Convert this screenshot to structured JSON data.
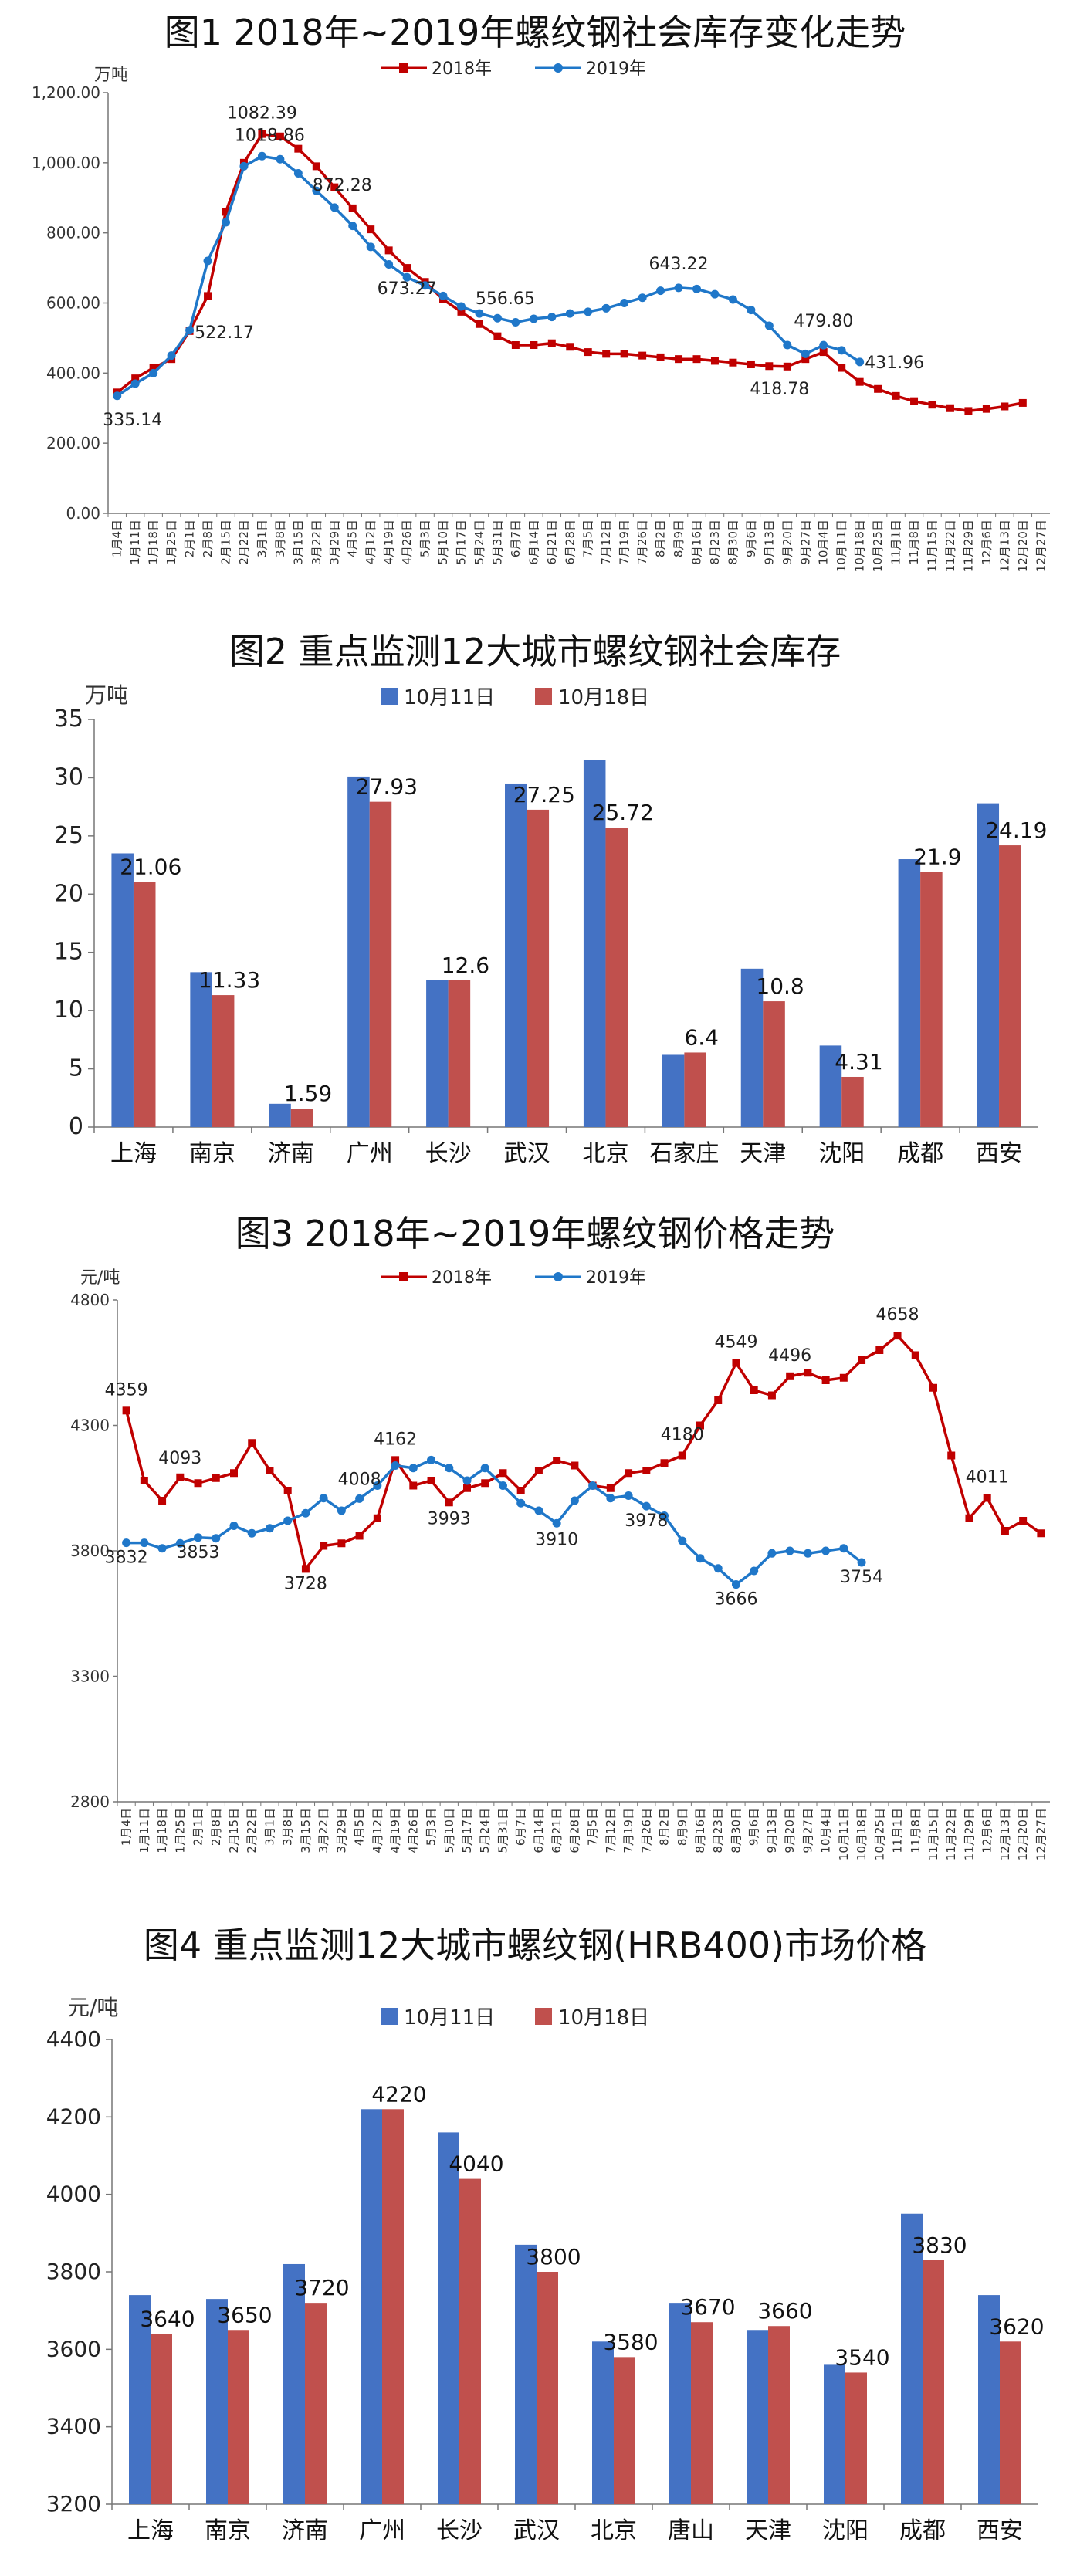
{
  "chart_data": [
    {
      "type": "line",
      "title": "图1 2018年~2019年螺纹钢社会库存变化走势",
      "ylabel": "万吨",
      "ylim": [
        0,
        1200
      ],
      "yticks": [
        "0.00",
        "200.00",
        "400.00",
        "600.00",
        "800.00",
        "1,000.00",
        "1,200.00"
      ],
      "legend_position": "top-center",
      "grid": false,
      "x": [
        "1月4日",
        "1月11日",
        "1月18日",
        "1月25日",
        "2月1日",
        "2月8日",
        "2月15日",
        "2月22日",
        "3月1日",
        "3月8日",
        "3月15日",
        "3月22日",
        "3月29日",
        "4月5日",
        "4月12日",
        "4月19日",
        "4月26日",
        "5月3日",
        "5月10日",
        "5月17日",
        "5月24日",
        "5月31日",
        "6月7日",
        "6月14日",
        "6月21日",
        "6月28日",
        "7月5日",
        "7月12日",
        "7月19日",
        "7月26日",
        "8月2日",
        "8月9日",
        "8月16日",
        "8月23日",
        "8月30日",
        "9月6日",
        "9月13日",
        "9月20日",
        "9月27日",
        "10月4日",
        "10月11日",
        "10月18日",
        "10月25日",
        "11月1日",
        "11月8日",
        "11月15日",
        "11月22日",
        "11月29日",
        "12月6日",
        "12月13日",
        "12月20日",
        "12月27日"
      ],
      "series": [
        {
          "name": "2018年",
          "color": "#c00000",
          "values": [
            345,
            385,
            415,
            440,
            520,
            620,
            860,
            1000,
            1082,
            1075,
            1040,
            990,
            930,
            870,
            810,
            750,
            700,
            660,
            610,
            575,
            540,
            505,
            480,
            480,
            485,
            475,
            460,
            455,
            455,
            450,
            445,
            440,
            440,
            435,
            430,
            425,
            420,
            418.78,
            440,
            460,
            415,
            375,
            355,
            335,
            320,
            310,
            300,
            292,
            298,
            305,
            315,
            null
          ]
        },
        {
          "name": "2019年",
          "color": "#1f77c9",
          "values": [
            335.14,
            370,
            400,
            450,
            522.17,
            720,
            830,
            990,
            1018.86,
            1010,
            970,
            920,
            872.28,
            820,
            760,
            710,
            673.27,
            650,
            620,
            590,
            570,
            556.65,
            545,
            555,
            560,
            570,
            575,
            585,
            600,
            615,
            635,
            643.22,
            640,
            625,
            610,
            580,
            535,
            480,
            455,
            479.8,
            465,
            431.96,
            null,
            null,
            null,
            null,
            null,
            null,
            null,
            null,
            null,
            null
          ]
        }
      ],
      "labels": [
        {
          "series": 0,
          "index": 8,
          "text": "1082.39"
        },
        {
          "series": 1,
          "index": 8,
          "text": "1018.86"
        },
        {
          "series": 1,
          "index": 12,
          "text": "872.28"
        },
        {
          "series": 1,
          "index": 16,
          "text": "673.27"
        },
        {
          "series": 1,
          "index": 4,
          "text": "522.17"
        },
        {
          "series": 1,
          "index": 0,
          "text": "335.14"
        },
        {
          "series": 1,
          "index": 21,
          "text": "556.65"
        },
        {
          "series": 1,
          "index": 31,
          "text": "643.22"
        },
        {
          "series": 0,
          "index": 37,
          "text": "418.78"
        },
        {
          "series": 1,
          "index": 39,
          "text": "479.80"
        },
        {
          "series": 1,
          "index": 41,
          "text": "431.96"
        }
      ]
    },
    {
      "type": "bar",
      "title": "图2 重点监测12大城市螺纹钢社会库存",
      "ylabel": "万吨",
      "ylim": [
        0,
        35
      ],
      "yticks": [
        "0",
        "5",
        "10",
        "15",
        "20",
        "25",
        "30",
        "35"
      ],
      "legend_position": "top-center",
      "categories": [
        "上海",
        "南京",
        "济南",
        "广州",
        "长沙",
        "武汉",
        "北京",
        "石家庄",
        "天津",
        "沈阳",
        "成都",
        "西安"
      ],
      "series": [
        {
          "name": "10月11日",
          "color": "#4472c4",
          "values": [
            23.5,
            13.3,
            2.0,
            30.1,
            12.6,
            29.5,
            31.5,
            6.2,
            13.6,
            7.0,
            23.0,
            27.8
          ]
        },
        {
          "name": "10月18日",
          "color": "#c0504d",
          "values": [
            21.06,
            11.33,
            1.59,
            27.93,
            12.6,
            27.25,
            25.72,
            6.4,
            10.8,
            4.31,
            21.9,
            24.19
          ]
        }
      ],
      "label_texts": [
        "21.06",
        "11.33",
        "1.59",
        "27.93",
        "12.6",
        "27.25",
        "25.72",
        "6.4",
        "10.8",
        "4.31",
        "21.9",
        "24.19"
      ]
    },
    {
      "type": "line",
      "title": "图3 2018年~2019年螺纹钢价格走势",
      "ylabel": "元/吨",
      "ylim": [
        2800,
        4800
      ],
      "yticks": [
        "2800",
        "3300",
        "3800",
        "4300",
        "4800"
      ],
      "legend_position": "top-center",
      "grid": false,
      "x": [
        "1月4日",
        "1月11日",
        "1月18日",
        "1月25日",
        "2月1日",
        "2月8日",
        "2月15日",
        "2月22日",
        "3月1日",
        "3月8日",
        "3月15日",
        "3月22日",
        "3月29日",
        "4月5日",
        "4月12日",
        "4月19日",
        "4月26日",
        "5月3日",
        "5月10日",
        "5月17日",
        "5月24日",
        "5月31日",
        "6月7日",
        "6月14日",
        "6月21日",
        "6月28日",
        "7月5日",
        "7月12日",
        "7月19日",
        "7月26日",
        "8月2日",
        "8月9日",
        "8月16日",
        "8月23日",
        "8月30日",
        "9月6日",
        "9月13日",
        "9月20日",
        "9月27日",
        "10月4日",
        "10月11日",
        "10月18日",
        "10月25日",
        "11月1日",
        "11月8日",
        "11月15日",
        "11月22日",
        "11月29日",
        "12月6日",
        "12月13日",
        "12月20日",
        "12月27日"
      ],
      "series": [
        {
          "name": "2018年",
          "color": "#c00000",
          "values": [
            4359,
            4080,
            4000,
            4093,
            4070,
            4090,
            4110,
            4230,
            4120,
            4040,
            3728,
            3820,
            3830,
            3860,
            3930,
            4162,
            4060,
            4080,
            3993,
            4050,
            4070,
            4110,
            4040,
            4120,
            4160,
            4140,
            4060,
            4050,
            4110,
            4120,
            4150,
            4180,
            4300,
            4400,
            4549,
            4440,
            4420,
            4496,
            4510,
            4480,
            4490,
            4560,
            4600,
            4658,
            4580,
            4450,
            4180,
            3930,
            4011,
            3880,
            3920,
            3870
          ]
        },
        {
          "name": "2019年",
          "color": "#1f77c9",
          "values": [
            3832,
            3832,
            3810,
            3830,
            3853,
            3850,
            3900,
            3870,
            3890,
            3920,
            3950,
            4010,
            3960,
            4008,
            4060,
            4140,
            4130,
            4162,
            4130,
            4080,
            4130,
            4060,
            3990,
            3960,
            3910,
            4000,
            4060,
            4010,
            4020,
            3978,
            3940,
            3840,
            3770,
            3730,
            3666,
            3720,
            3790,
            3800,
            3790,
            3800,
            3810,
            3754,
            null,
            null,
            null,
            null,
            null,
            null,
            null,
            null,
            null,
            null
          ]
        }
      ],
      "labels": [
        {
          "series": 0,
          "index": 0,
          "text": "4359"
        },
        {
          "series": 1,
          "index": 0,
          "text": "3832"
        },
        {
          "series": 0,
          "index": 3,
          "text": "4093"
        },
        {
          "series": 1,
          "index": 4,
          "text": "3853"
        },
        {
          "series": 0,
          "index": 10,
          "text": "3728"
        },
        {
          "series": 1,
          "index": 13,
          "text": "4008"
        },
        {
          "series": 0,
          "index": 15,
          "text": "4162"
        },
        {
          "series": 0,
          "index": 18,
          "text": "3993"
        },
        {
          "series": 1,
          "index": 24,
          "text": "3910"
        },
        {
          "series": 1,
          "index": 29,
          "text": "3978"
        },
        {
          "series": 0,
          "index": 31,
          "text": "4180"
        },
        {
          "series": 0,
          "index": 34,
          "text": "4549"
        },
        {
          "series": 1,
          "index": 34,
          "text": "3666"
        },
        {
          "series": 0,
          "index": 37,
          "text": "4496"
        },
        {
          "series": 1,
          "index": 41,
          "text": "3754"
        },
        {
          "series": 0,
          "index": 43,
          "text": "4658"
        },
        {
          "series": 0,
          "index": 48,
          "text": "4011"
        }
      ]
    },
    {
      "type": "bar",
      "title": "图4 重点监测12大城市螺纹钢(HRB400)市场价格",
      "ylabel": "元/吨",
      "ylim": [
        3200,
        4400
      ],
      "yticks": [
        "3200",
        "3400",
        "3600",
        "3800",
        "4000",
        "4200",
        "4400"
      ],
      "legend_position": "top-center",
      "categories": [
        "上海",
        "南京",
        "济南",
        "广州",
        "长沙",
        "武汉",
        "北京",
        "唐山",
        "天津",
        "沈阳",
        "成都",
        "西安"
      ],
      "series": [
        {
          "name": "10月11日",
          "color": "#4472c4",
          "values": [
            3740,
            3730,
            3820,
            4220,
            4160,
            3870,
            3620,
            3720,
            3650,
            3560,
            3950,
            3740
          ]
        },
        {
          "name": "10月18日",
          "color": "#c0504d",
          "values": [
            3640,
            3650,
            3720,
            4220,
            4040,
            3800,
            3580,
            3670,
            3660,
            3540,
            3830,
            3620
          ]
        }
      ],
      "label_texts": [
        "3640",
        "3650",
        "3720",
        "4220",
        "4040",
        "3800",
        "3580",
        "3670",
        "3660",
        "3540",
        "3830",
        "3620"
      ]
    }
  ]
}
